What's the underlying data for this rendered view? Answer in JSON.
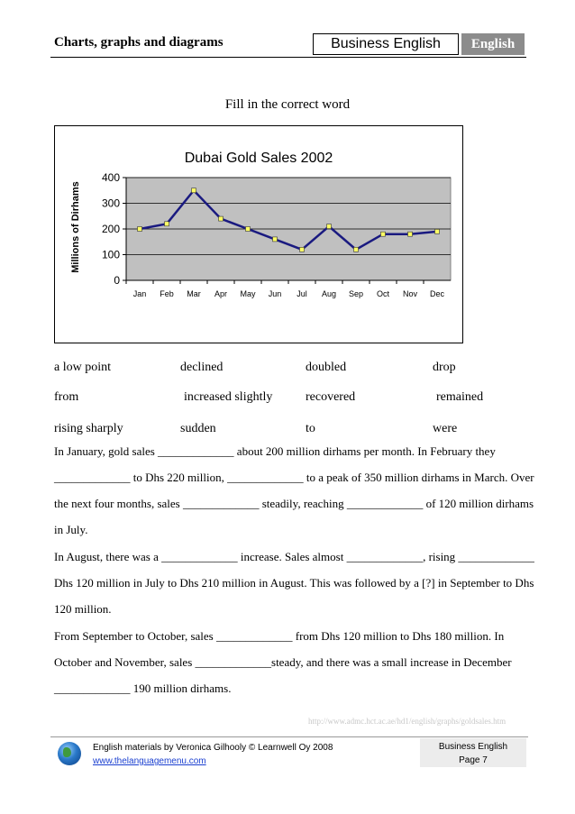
{
  "header": {
    "title": "Charts, graphs and diagrams",
    "box_label": "Business English",
    "tab_label": "English"
  },
  "instruction": "Fill in the correct word",
  "chart_data": {
    "type": "line",
    "title": "Dubai Gold Sales 2002",
    "xlabel": "",
    "ylabel": "Millions of Dirhams",
    "categories": [
      "Jan",
      "Feb",
      "Mar",
      "Apr",
      "May",
      "Jun",
      "Jul",
      "Aug",
      "Sep",
      "Oct",
      "Nov",
      "Dec"
    ],
    "values": [
      200,
      220,
      350,
      240,
      200,
      160,
      120,
      210,
      120,
      180,
      180,
      190
    ],
    "ylim": [
      0,
      400
    ],
    "yticks": [
      0,
      100,
      200,
      300,
      400
    ],
    "grid": true,
    "legend": "none",
    "line_color": "#1a1a80",
    "marker_color": "#ffff66",
    "plot_bg": "#c0c0c0"
  },
  "words": [
    [
      "a low point",
      "declined",
      "doubled",
      "drop"
    ],
    [
      "from",
      "increased slightly",
      "recovered",
      "remained"
    ],
    [
      "rising sharply",
      "sudden",
      "to",
      "were"
    ]
  ],
  "text_lines": [
    "In January, gold sales _____________ about 200 million dirhams per month. In February they",
    "_____________ to Dhs 220 million, _____________ to a peak of 350 million dirhams in March. Over",
    "the next four months, sales _____________ steadily, reaching _____________ of 120 million dirhams",
    "in July.",
    "In August, there was a _____________ increase. Sales almost _____________, rising _____________",
    "Dhs 120 million in July to Dhs 210 million in August. This was followed by a [?] in September to Dhs",
    "120 million.",
    "From September to October, sales _____________ from Dhs 120 million to Dhs 180 million. In",
    "October and November, sales _____________steady, and there was a small increase in December",
    "_____________ 190 million dirhams."
  ],
  "source_url": "http://www.admc.hct.ac.ae/hd1/english/graphs/goldsales.htm",
  "footer": {
    "credit": "English materials by Veronica Gilhooly © Learnwell Oy 2008",
    "link": "www.thelanguagemenu.com",
    "right_title": "Business English",
    "page": "Page 7"
  }
}
